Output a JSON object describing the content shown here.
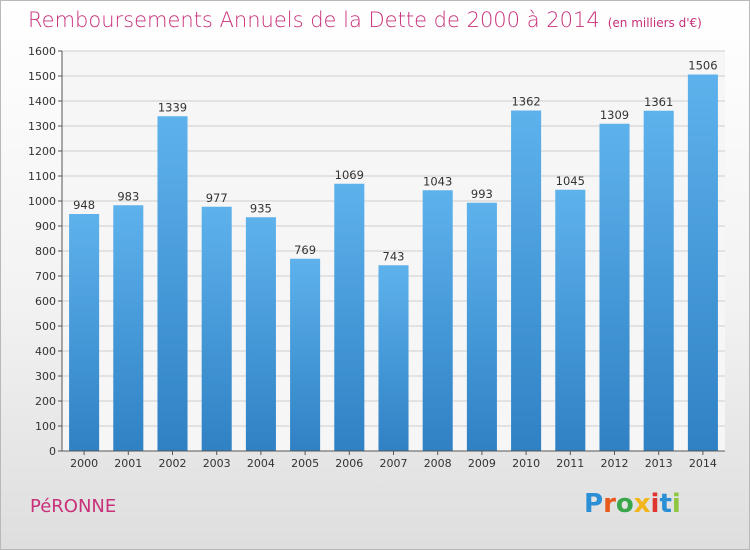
{
  "title": "Remboursements Annuels de la Dette de 2000 à 2014",
  "unit_note": "(en milliers d'€)",
  "city": "PéRONNE",
  "logo": {
    "letters": [
      "P",
      "r",
      "o",
      "x",
      "i",
      "t",
      "i"
    ],
    "colors": [
      "#2a8fd5",
      "#e85a1a",
      "#3aa64a",
      "#f2b51a",
      "#e0342e",
      "#2a8fd5",
      "#8fc63f"
    ]
  },
  "colors": {
    "bar_top": "#5eb2ec",
    "bar_bottom": "#2f81c4",
    "accent": "#c8307a"
  },
  "chart_data": {
    "type": "bar",
    "categories": [
      "2000",
      "2001",
      "2002",
      "2003",
      "2004",
      "2005",
      "2006",
      "2007",
      "2008",
      "2009",
      "2010",
      "2011",
      "2012",
      "2013",
      "2014"
    ],
    "values": [
      948,
      983,
      1339,
      977,
      935,
      769,
      1069,
      743,
      1043,
      993,
      1362,
      1045,
      1309,
      1361,
      1506
    ],
    "ylim": [
      0,
      1600
    ],
    "yticks": [
      0,
      100,
      200,
      300,
      400,
      500,
      600,
      700,
      800,
      900,
      1000,
      1100,
      1200,
      1300,
      1400,
      1500,
      1600
    ],
    "grid": true,
    "xlabel": "",
    "ylabel": ""
  }
}
